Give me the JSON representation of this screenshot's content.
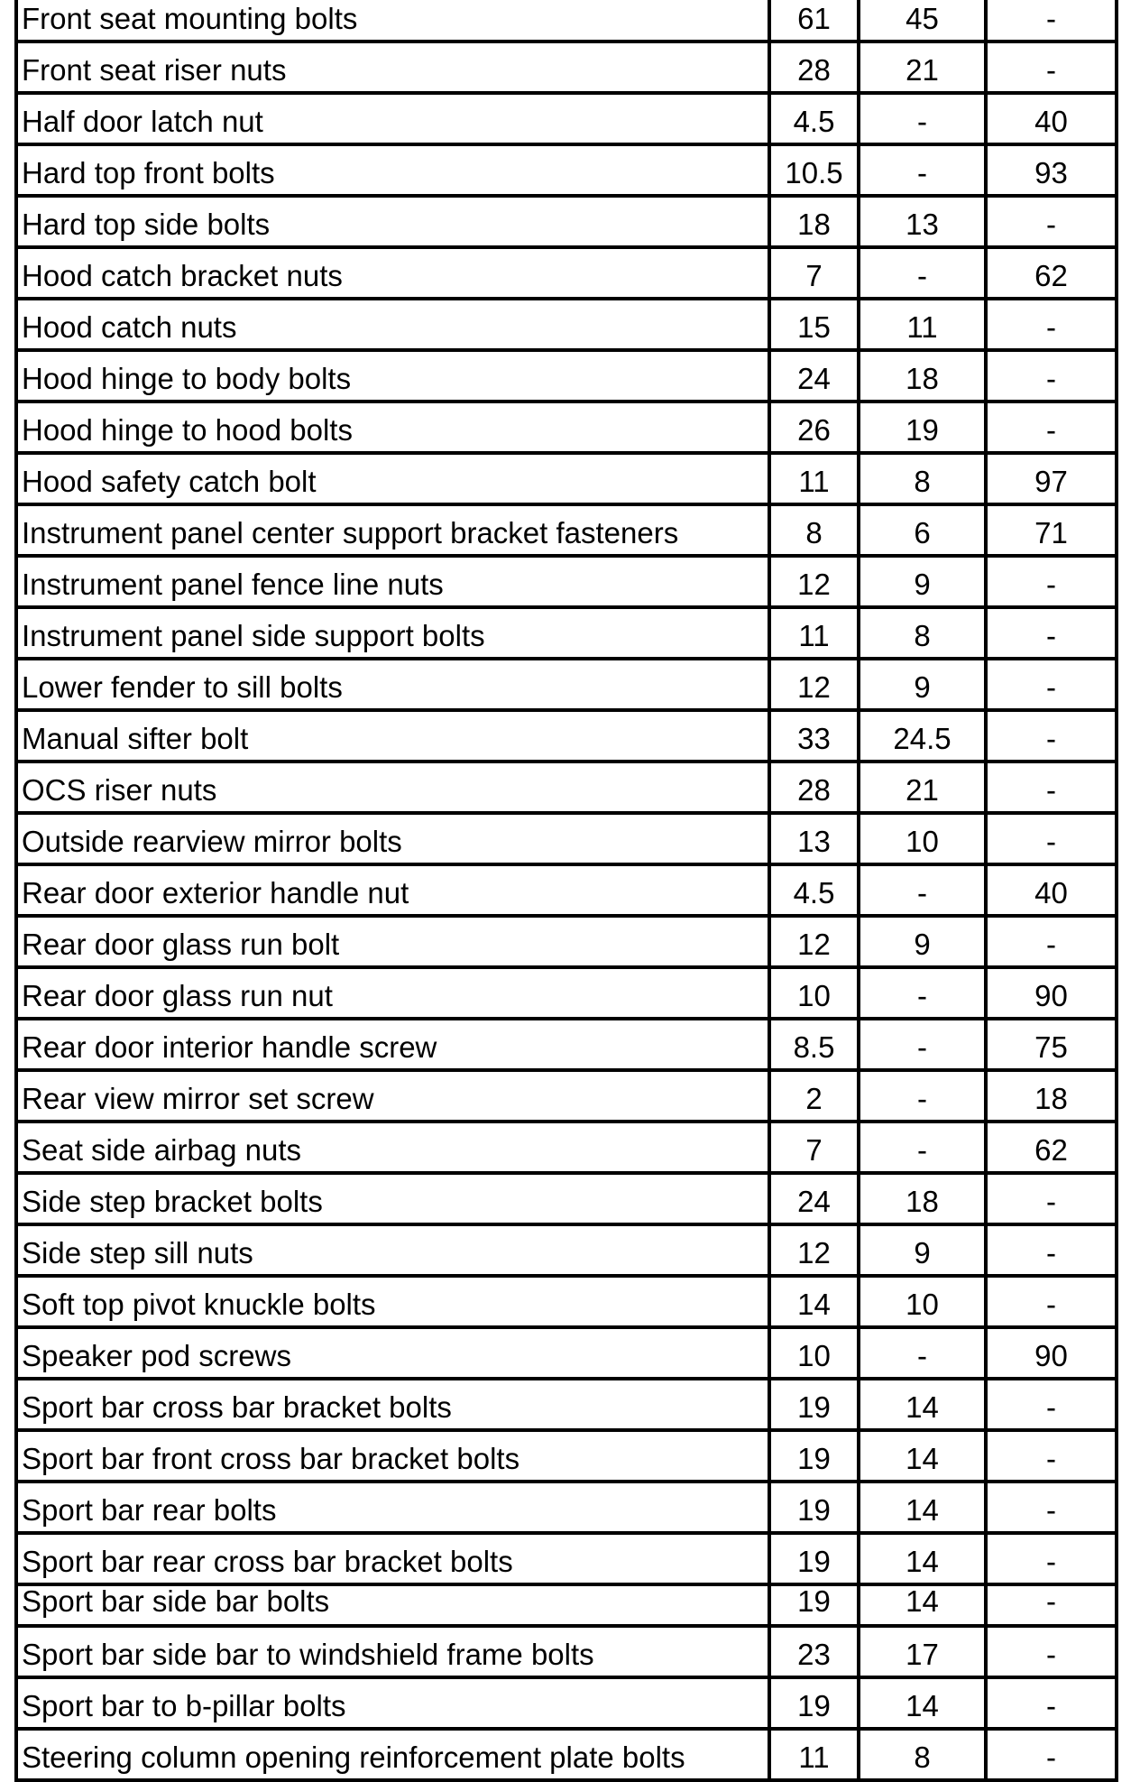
{
  "table": {
    "rows": [
      [
        "Front seat mounting bolts",
        "61",
        "45",
        "-"
      ],
      [
        "Front seat riser nuts",
        "28",
        "21",
        "-"
      ],
      [
        "Half door latch nut",
        "4.5",
        "-",
        "40"
      ],
      [
        "Hard top front bolts",
        "10.5",
        "-",
        "93"
      ],
      [
        "Hard top side bolts",
        "18",
        "13",
        "-"
      ],
      [
        "Hood catch bracket nuts",
        "7",
        "-",
        "62"
      ],
      [
        "Hood catch nuts",
        "15",
        "11",
        "-"
      ],
      [
        "Hood hinge to body bolts",
        "24",
        "18",
        "-"
      ],
      [
        "Hood hinge to hood bolts",
        "26",
        "19",
        "-"
      ],
      [
        "Hood safety catch bolt",
        "11",
        "8",
        "97"
      ],
      [
        "Instrument panel center support bracket fasteners",
        "8",
        "6",
        "71"
      ],
      [
        "Instrument panel fence line nuts",
        "12",
        "9",
        "-"
      ],
      [
        "Instrument panel side support bolts",
        "11",
        "8",
        "-"
      ],
      [
        "Lower fender to sill bolts",
        "12",
        "9",
        "-"
      ],
      [
        "Manual sifter bolt",
        "33",
        "24.5",
        "-"
      ],
      [
        "OCS riser nuts",
        "28",
        "21",
        "-"
      ],
      [
        "Outside rearview mirror bolts",
        "13",
        "10",
        "-"
      ],
      [
        "Rear door exterior handle nut",
        "4.5",
        "-",
        "40"
      ],
      [
        "Rear door glass run bolt",
        "12",
        "9",
        "-"
      ],
      [
        "Rear door glass run nut",
        "10",
        "-",
        "90"
      ],
      [
        "Rear door interior handle screw",
        "8.5",
        "-",
        "75"
      ],
      [
        "Rear view mirror set screw",
        "2",
        "-",
        "18"
      ],
      [
        "Seat side airbag nuts",
        "7",
        "-",
        "62"
      ],
      [
        "Side step bracket bolts",
        "24",
        "18",
        "-"
      ],
      [
        "Side step sill nuts",
        "12",
        "9",
        "-"
      ],
      [
        "Soft top pivot knuckle bolts",
        "14",
        "10",
        "-"
      ],
      [
        "Speaker pod screws",
        "10",
        "-",
        "90"
      ],
      [
        "Sport bar cross bar bracket bolts",
        "19",
        "14",
        "-"
      ],
      [
        "Sport bar front cross bar bracket bolts",
        "19",
        "14",
        "-"
      ],
      [
        "Sport bar rear bolts",
        "19",
        "14",
        "-"
      ],
      [
        "Sport bar rear cross bar bracket bolts",
        "19",
        "14",
        "-"
      ],
      [
        "Sport bar side bar bolts",
        "19",
        "14",
        "-"
      ],
      [
        "Sport bar side bar to windshield frame bolts",
        "23",
        "17",
        "-"
      ],
      [
        "Sport bar to b-pillar bolts",
        "19",
        "14",
        "-"
      ],
      [
        "Steering column opening reinforcement plate bolts",
        "11",
        "8",
        "-"
      ]
    ]
  }
}
